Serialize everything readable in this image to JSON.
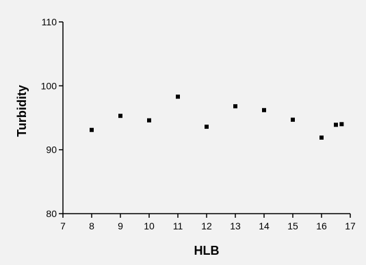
{
  "chart_data": {
    "type": "scatter",
    "title": "",
    "xlabel": "HLB",
    "ylabel": "Turbidity",
    "xlim": [
      7,
      17
    ],
    "ylim": [
      80,
      110
    ],
    "xticks": [
      7,
      8,
      9,
      10,
      11,
      12,
      13,
      14,
      15,
      16,
      17
    ],
    "yticks": [
      80,
      90,
      100,
      110
    ],
    "grid": false,
    "legend": "none",
    "series": [
      {
        "color": "#000000",
        "marker": "square",
        "points": [
          {
            "x": 8,
            "y": 93.1
          },
          {
            "x": 9,
            "y": 95.3
          },
          {
            "x": 10,
            "y": 94.6
          },
          {
            "x": 11,
            "y": 98.3
          },
          {
            "x": 12,
            "y": 93.6
          },
          {
            "x": 13,
            "y": 96.8
          },
          {
            "x": 14,
            "y": 96.2
          },
          {
            "x": 15,
            "y": 94.7
          },
          {
            "x": 16,
            "y": 91.9
          },
          {
            "x": 16.5,
            "y": 93.9
          },
          {
            "x": 16.7,
            "y": 94.0
          }
        ]
      }
    ]
  }
}
